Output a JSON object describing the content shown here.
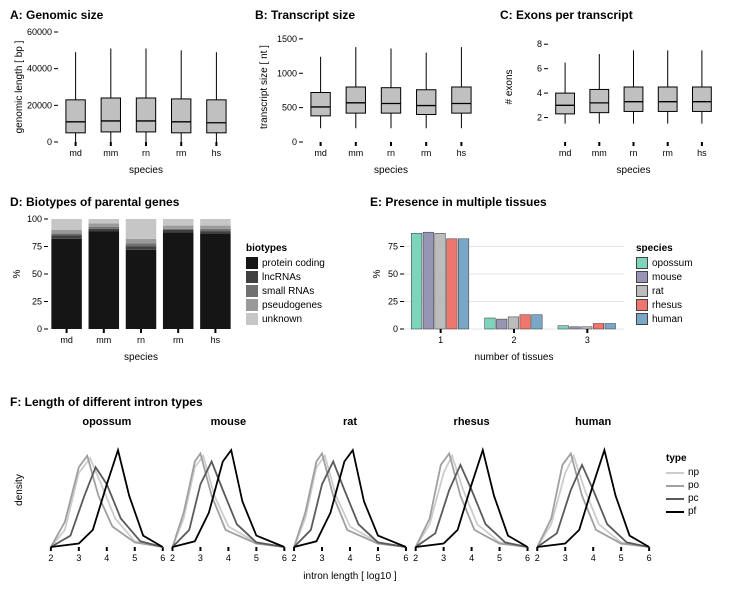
{
  "panelA": {
    "title": "A: Genomic size",
    "ylabel": "genomic length [ bp ]",
    "xlabel": "species",
    "ylim": [
      0,
      60000
    ],
    "yticks": [
      0,
      20000,
      40000,
      60000
    ],
    "categories": [
      "md",
      "mm",
      "rn",
      "rm",
      "hs"
    ],
    "boxes": [
      {
        "q1": 5000,
        "med": 11000,
        "q3": 23000,
        "wlo": 0,
        "whi": 49000
      },
      {
        "q1": 5500,
        "med": 11500,
        "q3": 24000,
        "wlo": 0,
        "whi": 51000
      },
      {
        "q1": 5500,
        "med": 11500,
        "q3": 24000,
        "wlo": 0,
        "whi": 51000
      },
      {
        "q1": 5000,
        "med": 11000,
        "q3": 23500,
        "wlo": 0,
        "whi": 50000
      },
      {
        "q1": 5000,
        "med": 10500,
        "q3": 23000,
        "wlo": 0,
        "whi": 49000
      }
    ],
    "box_fill": "#c0c0c0",
    "box_stroke": "#000000",
    "bg": "#ffffff",
    "grid_color": "#e0e0e0"
  },
  "panelB": {
    "title": "B: Transcript size",
    "ylabel": "transcript size [ nt ]",
    "xlabel": "species",
    "ylim": [
      0,
      1600
    ],
    "yticks": [
      0,
      500,
      1000,
      1500
    ],
    "categories": [
      "md",
      "mm",
      "rn",
      "rm",
      "hs"
    ],
    "boxes": [
      {
        "q1": 380,
        "med": 510,
        "q3": 720,
        "wlo": 200,
        "whi": 1240
      },
      {
        "q1": 420,
        "med": 570,
        "q3": 800,
        "wlo": 200,
        "whi": 1380
      },
      {
        "q1": 420,
        "med": 560,
        "q3": 790,
        "wlo": 200,
        "whi": 1360
      },
      {
        "q1": 400,
        "med": 530,
        "q3": 760,
        "wlo": 200,
        "whi": 1300
      },
      {
        "q1": 420,
        "med": 560,
        "q3": 800,
        "wlo": 200,
        "whi": 1380
      }
    ],
    "box_fill": "#c0c0c0",
    "box_stroke": "#000000"
  },
  "panelC": {
    "title": "C: Exons per transcript",
    "ylabel": "# exons",
    "xlabel": "species",
    "ylim": [
      0,
      9
    ],
    "yticks": [
      2,
      4,
      6,
      8
    ],
    "categories": [
      "md",
      "mm",
      "rn",
      "rm",
      "hs"
    ],
    "boxes": [
      {
        "q1": 2.3,
        "med": 3.0,
        "q3": 4.0,
        "wlo": 1.5,
        "whi": 6.5
      },
      {
        "q1": 2.4,
        "med": 3.2,
        "q3": 4.3,
        "wlo": 1.5,
        "whi": 7.2
      },
      {
        "q1": 2.5,
        "med": 3.3,
        "q3": 4.5,
        "wlo": 1.5,
        "whi": 7.5
      },
      {
        "q1": 2.5,
        "med": 3.3,
        "q3": 4.5,
        "wlo": 1.5,
        "whi": 7.5
      },
      {
        "q1": 2.5,
        "med": 3.3,
        "q3": 4.5,
        "wlo": 1.5,
        "whi": 7.5
      }
    ],
    "box_fill": "#c0c0c0",
    "box_stroke": "#000000"
  },
  "panelD": {
    "title": "D: Biotypes of parental genes",
    "ylabel": "%",
    "xlabel": "species",
    "ylim": [
      0,
      100
    ],
    "yticks": [
      0,
      25,
      50,
      75,
      100
    ],
    "categories": [
      "md",
      "mm",
      "rn",
      "rm",
      "hs"
    ],
    "stacks": [
      [
        82,
        3,
        2,
        3,
        10
      ],
      [
        89,
        2,
        2,
        3,
        4
      ],
      [
        72,
        3,
        3,
        4,
        18
      ],
      [
        88,
        2,
        1,
        3,
        6
      ],
      [
        87,
        2,
        2,
        3,
        6
      ]
    ],
    "legend_title": "biotypes",
    "legend_items": [
      "protein coding",
      "lncRNAs",
      "small RNAs",
      "pseudogenes",
      "unknown"
    ],
    "colors": [
      "#151515",
      "#404040",
      "#707070",
      "#9a9a9a",
      "#c6c6c6"
    ]
  },
  "panelE": {
    "title": "E: Presence in multiple tissues",
    "ylabel": "%",
    "xlabel": "number of tissues",
    "ylim": [
      0,
      100
    ],
    "yticks": [
      0,
      25,
      50,
      75
    ],
    "categories": [
      "1",
      "2",
      "3"
    ],
    "legend_title": "species",
    "legend_items": [
      "opossum",
      "mouse",
      "rat",
      "rhesus",
      "human"
    ],
    "colors": [
      "#7ed3bb",
      "#9696b4",
      "#bcbcbc",
      "#ee766f",
      "#7ba7c7"
    ],
    "groups": [
      [
        87,
        88,
        87,
        82,
        82
      ],
      [
        10,
        9,
        11,
        13,
        13
      ],
      [
        3,
        2,
        2,
        5,
        5
      ]
    ]
  },
  "panelF": {
    "title": "F: Length of different intron types",
    "ylabel": "density",
    "xlabel": "intron length [ log10 ]",
    "xlim": [
      2,
      6
    ],
    "xticks": [
      2,
      3,
      4,
      5,
      6
    ],
    "facets": [
      "opossum",
      "mouse",
      "rat",
      "rhesus",
      "human"
    ],
    "legend_title": "type",
    "legend_items": [
      "np",
      "po",
      "pc",
      "pf"
    ],
    "colors": [
      "#cccccc",
      "#a0a0a0",
      "#5a5a5a",
      "#000000"
    ],
    "curves": {
      "opossum": {
        "np": [
          [
            2,
            0
          ],
          [
            2.5,
            0.15
          ],
          [
            3,
            0.65
          ],
          [
            3.4,
            0.78
          ],
          [
            3.8,
            0.55
          ],
          [
            4.3,
            0.25
          ],
          [
            5,
            0.05
          ],
          [
            6,
            0
          ]
        ],
        "po": [
          [
            2,
            0
          ],
          [
            2.5,
            0.22
          ],
          [
            3,
            0.7
          ],
          [
            3.3,
            0.8
          ],
          [
            3.7,
            0.45
          ],
          [
            4.2,
            0.18
          ],
          [
            5,
            0.04
          ],
          [
            6,
            0
          ]
        ],
        "pc": [
          [
            2,
            0
          ],
          [
            2.7,
            0.1
          ],
          [
            3.2,
            0.45
          ],
          [
            3.6,
            0.7
          ],
          [
            4.0,
            0.55
          ],
          [
            4.5,
            0.25
          ],
          [
            5.2,
            0.05
          ],
          [
            6,
            0
          ]
        ],
        "pf": [
          [
            2,
            0
          ],
          [
            3,
            0.03
          ],
          [
            3.5,
            0.15
          ],
          [
            4.0,
            0.55
          ],
          [
            4.4,
            0.85
          ],
          [
            4.8,
            0.45
          ],
          [
            5.3,
            0.1
          ],
          [
            6,
            0
          ]
        ]
      },
      "mouse": {
        "np": [
          [
            2,
            0
          ],
          [
            2.4,
            0.25
          ],
          [
            2.8,
            0.7
          ],
          [
            3.1,
            0.8
          ],
          [
            3.5,
            0.45
          ],
          [
            4.0,
            0.18
          ],
          [
            5,
            0.04
          ],
          [
            6,
            0
          ]
        ],
        "po": [
          [
            2,
            0
          ],
          [
            2.4,
            0.3
          ],
          [
            2.8,
            0.75
          ],
          [
            3.0,
            0.82
          ],
          [
            3.4,
            0.45
          ],
          [
            3.9,
            0.15
          ],
          [
            5,
            0.03
          ],
          [
            6,
            0
          ]
        ],
        "pc": [
          [
            2,
            0
          ],
          [
            2.6,
            0.15
          ],
          [
            3.0,
            0.55
          ],
          [
            3.4,
            0.75
          ],
          [
            3.8,
            0.5
          ],
          [
            4.3,
            0.2
          ],
          [
            5,
            0.04
          ],
          [
            6,
            0
          ]
        ],
        "pf": [
          [
            2,
            0
          ],
          [
            2.8,
            0.05
          ],
          [
            3.3,
            0.3
          ],
          [
            3.8,
            0.75
          ],
          [
            4.1,
            0.85
          ],
          [
            4.5,
            0.4
          ],
          [
            5.0,
            0.1
          ],
          [
            6,
            0
          ]
        ]
      },
      "rat": {
        "np": [
          [
            2,
            0
          ],
          [
            2.4,
            0.25
          ],
          [
            2.8,
            0.7
          ],
          [
            3.1,
            0.8
          ],
          [
            3.5,
            0.45
          ],
          [
            4.0,
            0.18
          ],
          [
            5,
            0.04
          ],
          [
            6,
            0
          ]
        ],
        "po": [
          [
            2,
            0
          ],
          [
            2.4,
            0.3
          ],
          [
            2.8,
            0.75
          ],
          [
            3.0,
            0.82
          ],
          [
            3.4,
            0.45
          ],
          [
            3.9,
            0.15
          ],
          [
            5,
            0.03
          ],
          [
            6,
            0
          ]
        ],
        "pc": [
          [
            2,
            0
          ],
          [
            2.6,
            0.15
          ],
          [
            3.0,
            0.55
          ],
          [
            3.4,
            0.75
          ],
          [
            3.8,
            0.5
          ],
          [
            4.3,
            0.2
          ],
          [
            5,
            0.04
          ],
          [
            6,
            0
          ]
        ],
        "pf": [
          [
            2,
            0
          ],
          [
            2.8,
            0.05
          ],
          [
            3.3,
            0.3
          ],
          [
            3.8,
            0.75
          ],
          [
            4.1,
            0.85
          ],
          [
            4.5,
            0.4
          ],
          [
            5.0,
            0.1
          ],
          [
            6,
            0
          ]
        ]
      },
      "rhesus": {
        "np": [
          [
            2,
            0
          ],
          [
            2.5,
            0.2
          ],
          [
            3.0,
            0.65
          ],
          [
            3.3,
            0.8
          ],
          [
            3.7,
            0.5
          ],
          [
            4.2,
            0.2
          ],
          [
            5,
            0.04
          ],
          [
            6,
            0
          ]
        ],
        "po": [
          [
            2,
            0
          ],
          [
            2.5,
            0.25
          ],
          [
            2.9,
            0.72
          ],
          [
            3.2,
            0.82
          ],
          [
            3.6,
            0.45
          ],
          [
            4.1,
            0.15
          ],
          [
            5,
            0.03
          ],
          [
            6,
            0
          ]
        ],
        "pc": [
          [
            2,
            0
          ],
          [
            2.7,
            0.12
          ],
          [
            3.2,
            0.5
          ],
          [
            3.6,
            0.72
          ],
          [
            4.0,
            0.5
          ],
          [
            4.5,
            0.2
          ],
          [
            5.2,
            0.04
          ],
          [
            6,
            0
          ]
        ],
        "pf": [
          [
            2,
            0
          ],
          [
            3,
            0.03
          ],
          [
            3.5,
            0.15
          ],
          [
            4.0,
            0.55
          ],
          [
            4.4,
            0.85
          ],
          [
            4.8,
            0.45
          ],
          [
            5.3,
            0.1
          ],
          [
            6,
            0
          ]
        ]
      },
      "human": {
        "np": [
          [
            2,
            0
          ],
          [
            2.5,
            0.2
          ],
          [
            3.0,
            0.65
          ],
          [
            3.3,
            0.8
          ],
          [
            3.7,
            0.5
          ],
          [
            4.2,
            0.2
          ],
          [
            5,
            0.04
          ],
          [
            6,
            0
          ]
        ],
        "po": [
          [
            2,
            0
          ],
          [
            2.5,
            0.25
          ],
          [
            2.9,
            0.72
          ],
          [
            3.2,
            0.82
          ],
          [
            3.6,
            0.45
          ],
          [
            4.1,
            0.15
          ],
          [
            5,
            0.03
          ],
          [
            6,
            0
          ]
        ],
        "pc": [
          [
            2,
            0
          ],
          [
            2.7,
            0.12
          ],
          [
            3.2,
            0.5
          ],
          [
            3.6,
            0.72
          ],
          [
            4.0,
            0.5
          ],
          [
            4.5,
            0.2
          ],
          [
            5.2,
            0.04
          ],
          [
            6,
            0
          ]
        ],
        "pf": [
          [
            2,
            0
          ],
          [
            3,
            0.03
          ],
          [
            3.5,
            0.15
          ],
          [
            4.0,
            0.55
          ],
          [
            4.4,
            0.85
          ],
          [
            4.8,
            0.45
          ],
          [
            5.3,
            0.1
          ],
          [
            6,
            0
          ]
        ]
      }
    }
  }
}
